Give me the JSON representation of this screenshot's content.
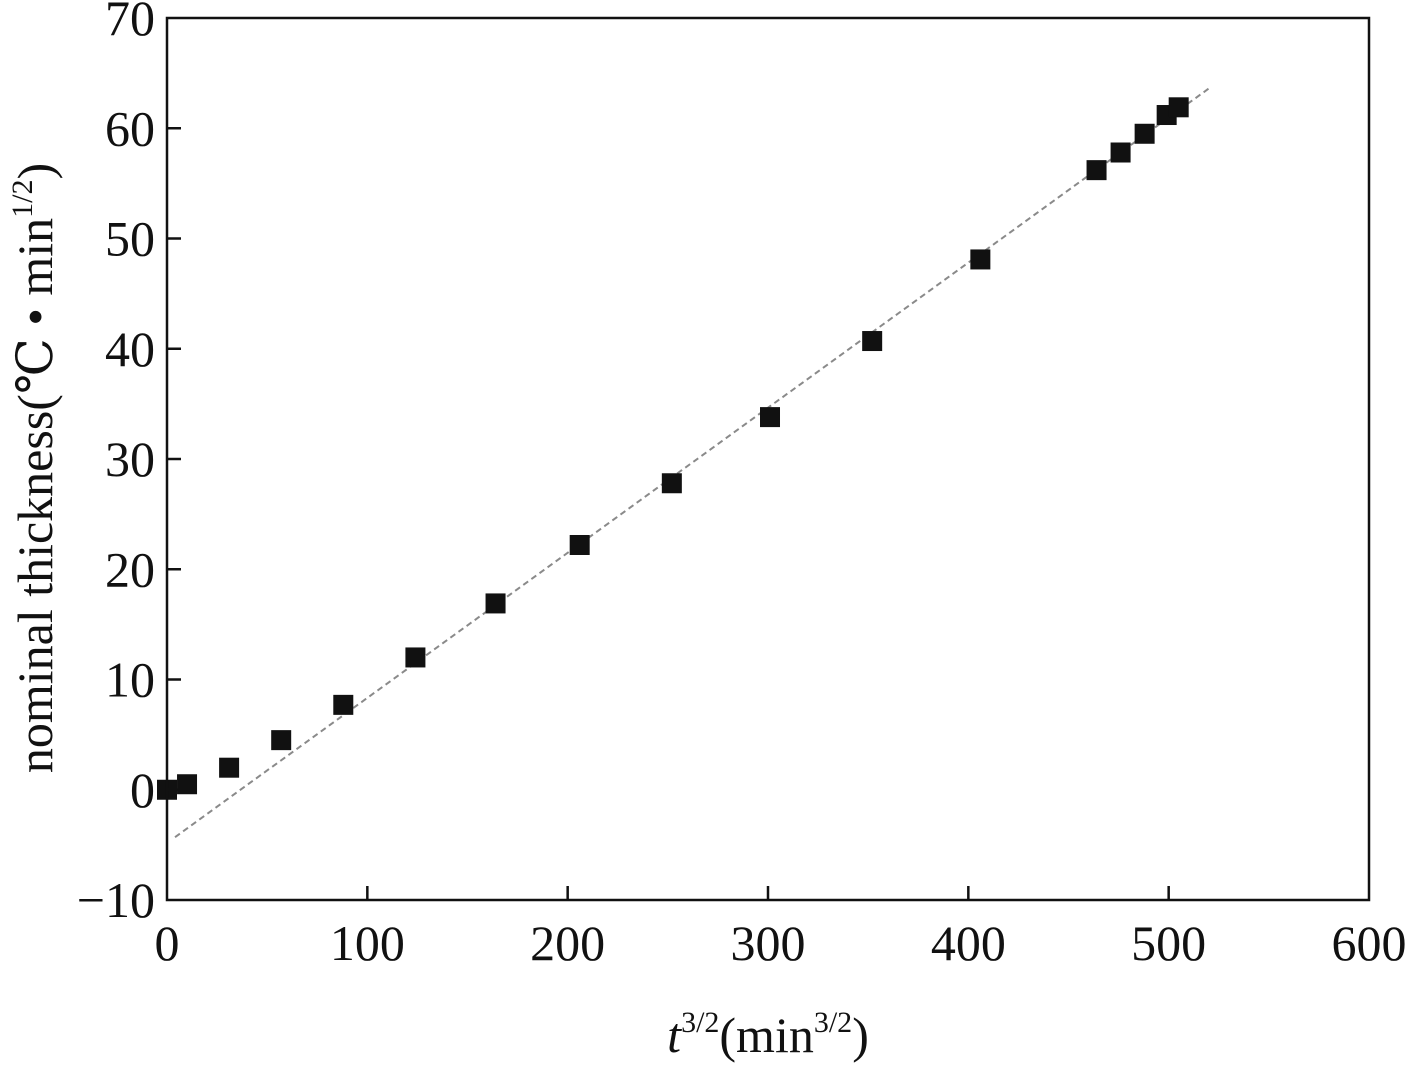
{
  "chart_data": {
    "type": "scatter",
    "xlabel": {
      "base": "t",
      "base_exp": "3/2",
      "unit_open": "(min",
      "unit_exp": "3/2",
      "unit_close": ")"
    },
    "ylabel": {
      "text": "nominal thickness(℃ • min",
      "exp": "1/2",
      "close": ")"
    },
    "xlim": [
      0,
      600
    ],
    "ylim": [
      -10,
      70
    ],
    "x_ticks": [
      0,
      100,
      200,
      300,
      400,
      500,
      600
    ],
    "y_ticks": [
      -10,
      0,
      10,
      20,
      30,
      40,
      50,
      60,
      70
    ],
    "x_tick_labels": [
      "0",
      "100",
      "200",
      "300",
      "400",
      "500",
      "600"
    ],
    "y_tick_labels": [
      "−10",
      "0",
      "10",
      "20",
      "30",
      "40",
      "50",
      "60",
      "70"
    ],
    "grid": false,
    "series": [
      {
        "marker": "square",
        "color": "#111111",
        "points": [
          [
            0,
            0
          ],
          [
            10,
            0.5
          ],
          [
            31,
            2.0
          ],
          [
            57,
            4.5
          ],
          [
            88,
            7.7
          ],
          [
            124,
            12.0
          ],
          [
            164,
            16.9
          ],
          [
            206,
            22.2
          ],
          [
            252,
            27.8
          ],
          [
            301,
            33.8
          ],
          [
            352,
            40.7
          ],
          [
            406,
            48.1
          ],
          [
            464,
            56.2
          ],
          [
            476,
            57.8
          ],
          [
            488,
            59.5
          ],
          [
            499,
            61.2
          ],
          [
            505,
            61.9
          ]
        ]
      }
    ],
    "fit_line": {
      "style": "dashed",
      "color": "#8a8a8a",
      "x": [
        4,
        520
      ],
      "y": [
        -4.3,
        63.6
      ]
    }
  }
}
